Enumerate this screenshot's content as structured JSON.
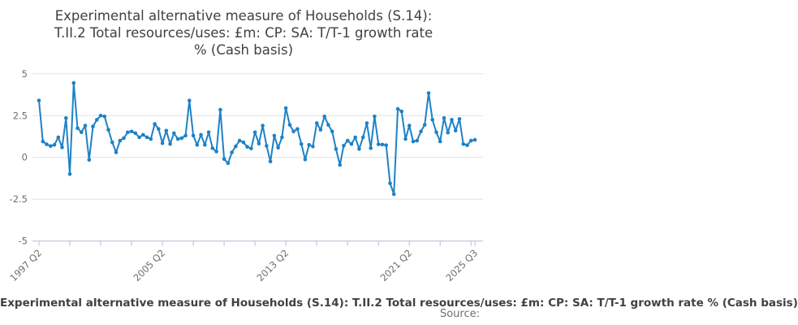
{
  "header": {
    "title_full": "Experimental alternative measure of Households (S.14): T.II.2 Total resources/uses: £m: CP: SA: T/T-1 growth rate % (Cash basis)",
    "title_lines": [
      "Experimental alternative measure of Households (S.14):",
      "T.II.2 Total resources/uses: £m: CP: SA: T/T-1 growth rate",
      "% (Cash basis)"
    ]
  },
  "chart_data": {
    "type": "line",
    "series_name": "Experimental alternative measure of Households (S.14): T.II.2 Total resources/uses: £m: CP: SA: T/T-1 growth rate % (Cash basis)",
    "x_unit": "quarter",
    "x_start": "1997 Q2",
    "x_end": "2025 Q3",
    "n_points": 114,
    "values": [
      3.4,
      0.95,
      0.78,
      0.68,
      0.75,
      1.2,
      0.6,
      2.35,
      -1.0,
      4.45,
      1.75,
      1.5,
      1.9,
      -0.15,
      1.85,
      2.25,
      2.5,
      2.45,
      1.65,
      0.9,
      0.3,
      1.0,
      1.15,
      1.5,
      1.55,
      1.45,
      1.2,
      1.35,
      1.2,
      1.1,
      2.0,
      1.7,
      0.85,
      1.6,
      0.8,
      1.45,
      1.1,
      1.15,
      1.3,
      3.4,
      1.3,
      0.75,
      1.35,
      0.75,
      1.5,
      0.55,
      0.35,
      2.85,
      -0.1,
      -0.35,
      0.3,
      0.66,
      1.0,
      0.9,
      0.63,
      0.53,
      1.5,
      0.82,
      1.9,
      0.69,
      -0.25,
      1.3,
      0.58,
      1.2,
      2.95,
      1.95,
      1.55,
      1.7,
      0.8,
      -0.12,
      0.75,
      0.65,
      2.05,
      1.65,
      2.45,
      1.95,
      1.55,
      0.5,
      -0.45,
      0.7,
      1.0,
      0.8,
      1.2,
      0.5,
      1.2,
      2.05,
      0.55,
      2.45,
      0.78,
      0.77,
      0.73,
      -1.55,
      -2.2,
      2.9,
      2.75,
      1.1,
      1.9,
      0.95,
      1.0,
      1.55,
      1.95,
      3.85,
      2.25,
      1.5,
      0.95,
      2.35,
      1.48,
      2.25,
      1.6,
      2.3,
      0.8,
      0.73,
      1.0,
      1.05
    ],
    "ylim": [
      -5,
      5
    ],
    "y_ticks": [
      5,
      2.5,
      0,
      -2.5,
      -5
    ],
    "x_tick_labels": [
      {
        "label": "1997 Q2",
        "index": 0
      },
      {
        "label": "2005 Q2",
        "index": 32
      },
      {
        "label": "2013 Q2",
        "index": 64
      },
      {
        "label": "2021 Q2",
        "index": 96
      },
      {
        "label": "2025 Q3",
        "index": 113
      }
    ],
    "minor_tick_every_quarters": 8,
    "grid": "horizontal",
    "legend_position": "bottom",
    "title": "Experimental alternative measure of Households (S.14): T.II.2 Total resources/uses: £m: CP: SA: T/T-1 growth rate % (Cash basis)",
    "xlabel": "",
    "ylabel": "",
    "marker": "circle",
    "colors": {
      "line": "#1d82c5",
      "marker": "#1d82c5",
      "gridline": "#e1e1e1",
      "axis": "#c6c7d8",
      "tick_label": "#6e6e6e",
      "title_text": "#414042"
    }
  },
  "legend": {
    "label": "Experimental alternative measure of Households (S.14): T.II.2 Total resources/uses: £m: CP: SA: T/T-1 growth rate % (Cash basis)"
  },
  "footer": {
    "source_label": "Source:"
  }
}
